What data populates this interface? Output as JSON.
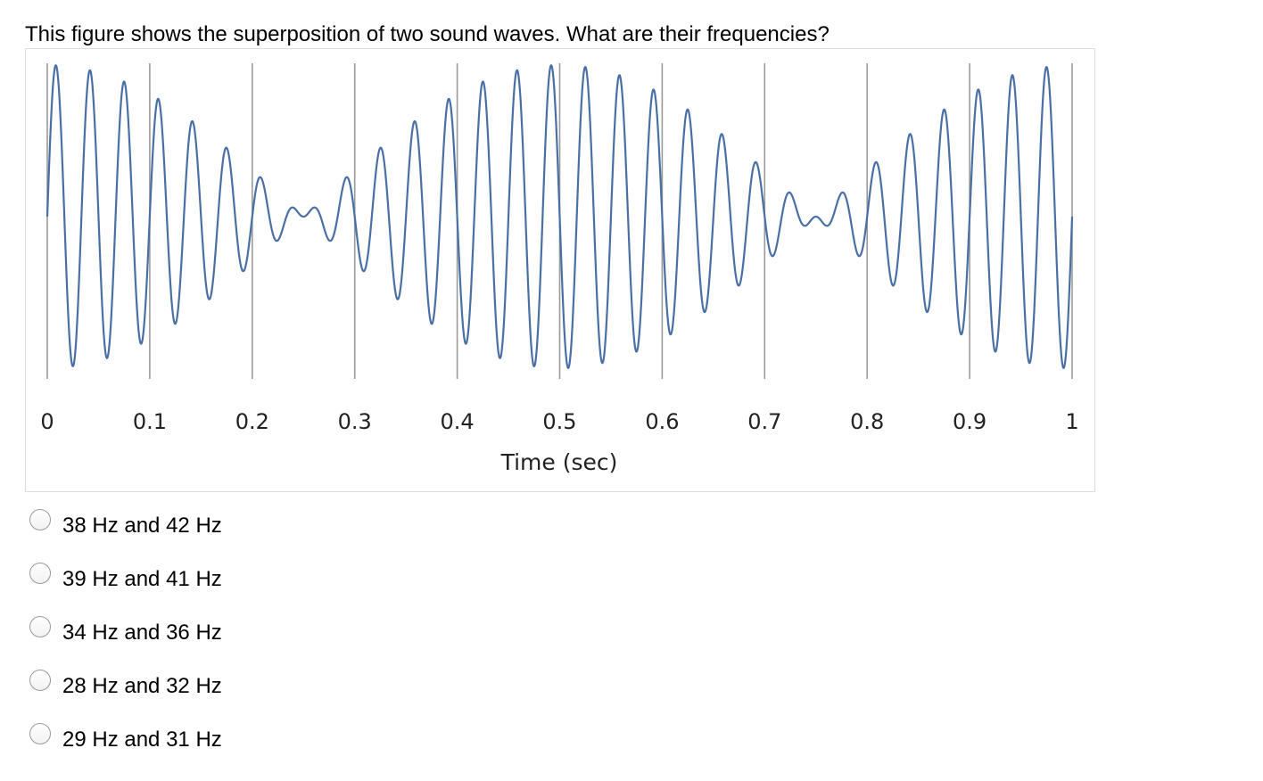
{
  "question": {
    "text": "This figure shows the superposition of two sound waves.  What are their frequencies?"
  },
  "chart_data": {
    "type": "line",
    "xlabel": "Time (sec)",
    "ylabel": "",
    "title": "",
    "xlim": [
      0,
      1
    ],
    "x_ticks": [
      "0",
      "0.1",
      "0.2",
      "0.3",
      "0.4",
      "0.5",
      "0.6",
      "0.7",
      "0.8",
      "0.9",
      "1"
    ],
    "vertical_gridlines": true,
    "line_color": "#4a6fa5",
    "series": [
      {
        "function": "sin(2*pi*29*t) + sin(2*pi*31*t)",
        "component_frequencies_hz": [
          29,
          31
        ],
        "beat_frequency_hz": 2,
        "amplitude_envelope_max": 2
      }
    ]
  },
  "options": [
    {
      "label": "38 Hz and 42 Hz"
    },
    {
      "label": "39 Hz and 41 Hz"
    },
    {
      "label": "34 Hz and 36 Hz"
    },
    {
      "label": "28 Hz and 32 Hz"
    },
    {
      "label": "29 Hz and 31 Hz"
    }
  ]
}
